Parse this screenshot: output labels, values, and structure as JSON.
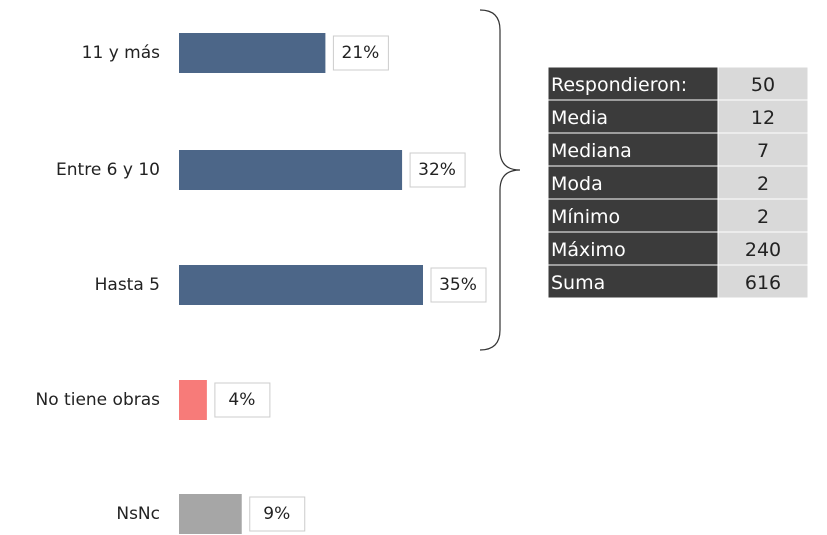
{
  "chart_data": {
    "type": "bar",
    "orientation": "horizontal",
    "categories": [
      "11 y más",
      "Entre 6 y 10",
      "Hasta 5",
      "No tiene obras",
      "NsNc"
    ],
    "values": [
      21,
      32,
      35,
      4,
      9
    ],
    "value_labels": [
      "21%",
      "32%",
      "35%",
      "4%",
      "9%"
    ],
    "colors": [
      "#4c6688",
      "#4c6688",
      "#4c6688",
      "#f77b79",
      "#a6a6a6"
    ]
  },
  "table": {
    "rows": [
      [
        "Respondieron:",
        "50"
      ],
      [
        "Media",
        "12"
      ],
      [
        "Mediana",
        "7"
      ],
      [
        "Moda",
        "2"
      ],
      [
        "Mínimo",
        "2"
      ],
      [
        "Máximo",
        "240"
      ],
      [
        "Suma",
        "616"
      ]
    ]
  }
}
